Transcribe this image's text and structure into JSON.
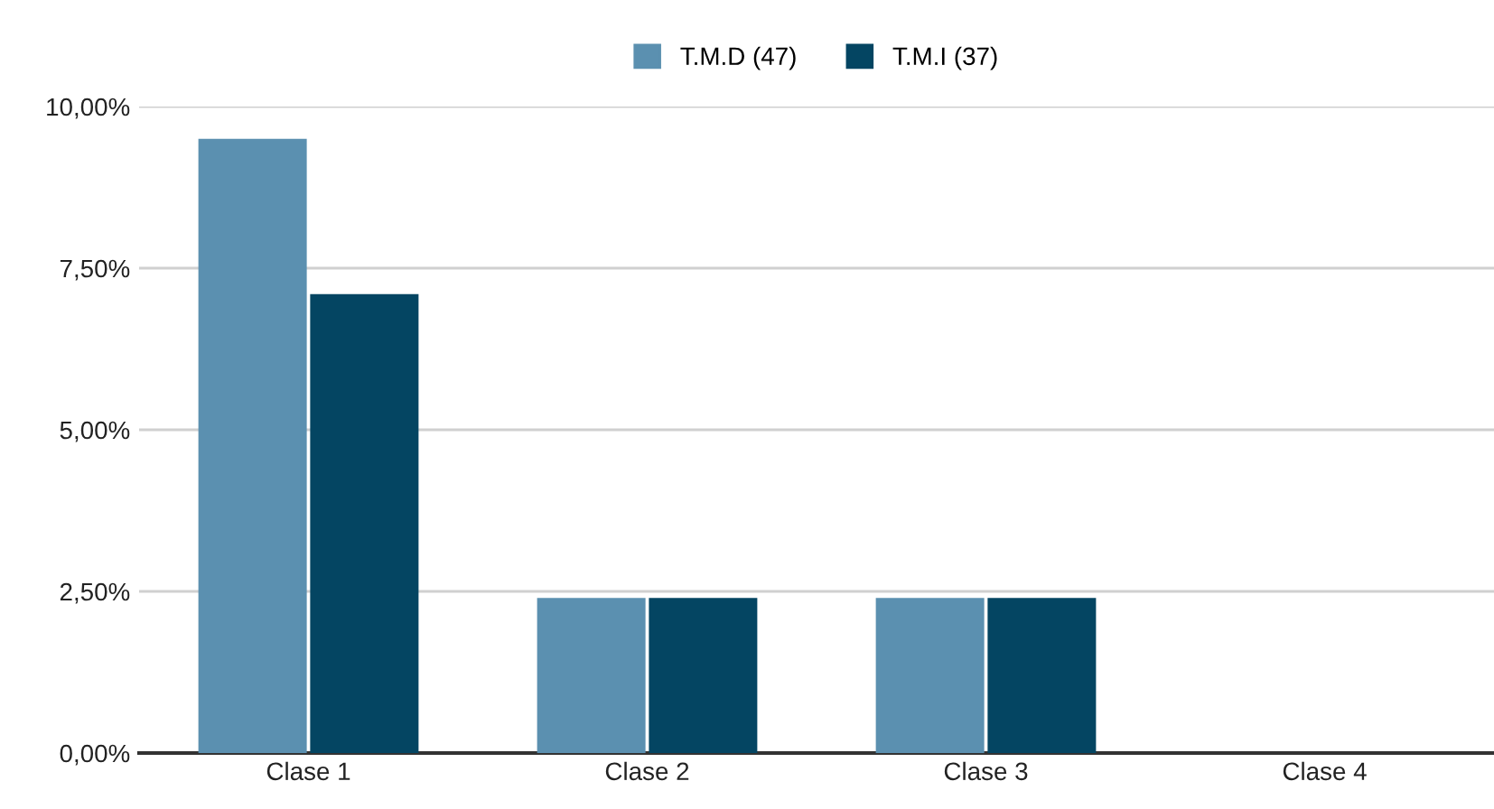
{
  "chart_data": {
    "type": "bar",
    "categories": [
      "Clase 1",
      "Clase 2",
      "Clase 3",
      "Clase 4"
    ],
    "series": [
      {
        "name": "T.M.D (47)",
        "color": "#5b90b0",
        "values": [
          9.5,
          2.4,
          2.4,
          0
        ]
      },
      {
        "name": "T.M.I (37)",
        "color": "#044562",
        "values": [
          7.1,
          2.4,
          2.4,
          0
        ]
      }
    ],
    "ylim": [
      0,
      10
    ],
    "yticks": [
      {
        "value": 0,
        "label": "0,00%"
      },
      {
        "value": 2.5,
        "label": "2,50%"
      },
      {
        "value": 5,
        "label": "5,00%"
      },
      {
        "value": 7.5,
        "label": "7,50%"
      },
      {
        "value": 10,
        "label": "10,00%"
      }
    ],
    "grid": "y",
    "legend": "top"
  }
}
